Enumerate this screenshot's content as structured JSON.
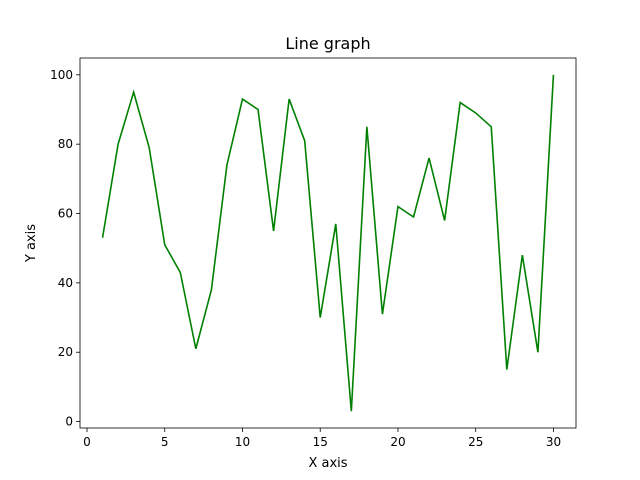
{
  "chart_data": {
    "type": "line",
    "title": "Line graph",
    "xlabel": "X axis",
    "ylabel": "Y axis",
    "xlim": [
      -0.45,
      31.45
    ],
    "ylim": [
      -1.85,
      104.85
    ],
    "xticks": [
      0,
      5,
      10,
      15,
      20,
      25,
      30
    ],
    "yticks": [
      0,
      20,
      40,
      60,
      80,
      100
    ],
    "grid": false,
    "series": [
      {
        "color": "#008000",
        "x": [
          1,
          2,
          3,
          4,
          5,
          6,
          7,
          8,
          9,
          10,
          11,
          12,
          13,
          14,
          15,
          16,
          17,
          18,
          19,
          20,
          21,
          22,
          23,
          24,
          25,
          26,
          27,
          28,
          29,
          30
        ],
        "y": [
          53,
          80,
          95,
          79,
          51,
          43,
          21,
          38,
          74,
          93,
          90,
          55,
          93,
          81,
          30,
          57,
          3,
          85,
          31,
          62,
          59,
          76,
          58,
          92,
          89,
          85,
          15,
          48,
          20,
          100
        ]
      }
    ]
  }
}
